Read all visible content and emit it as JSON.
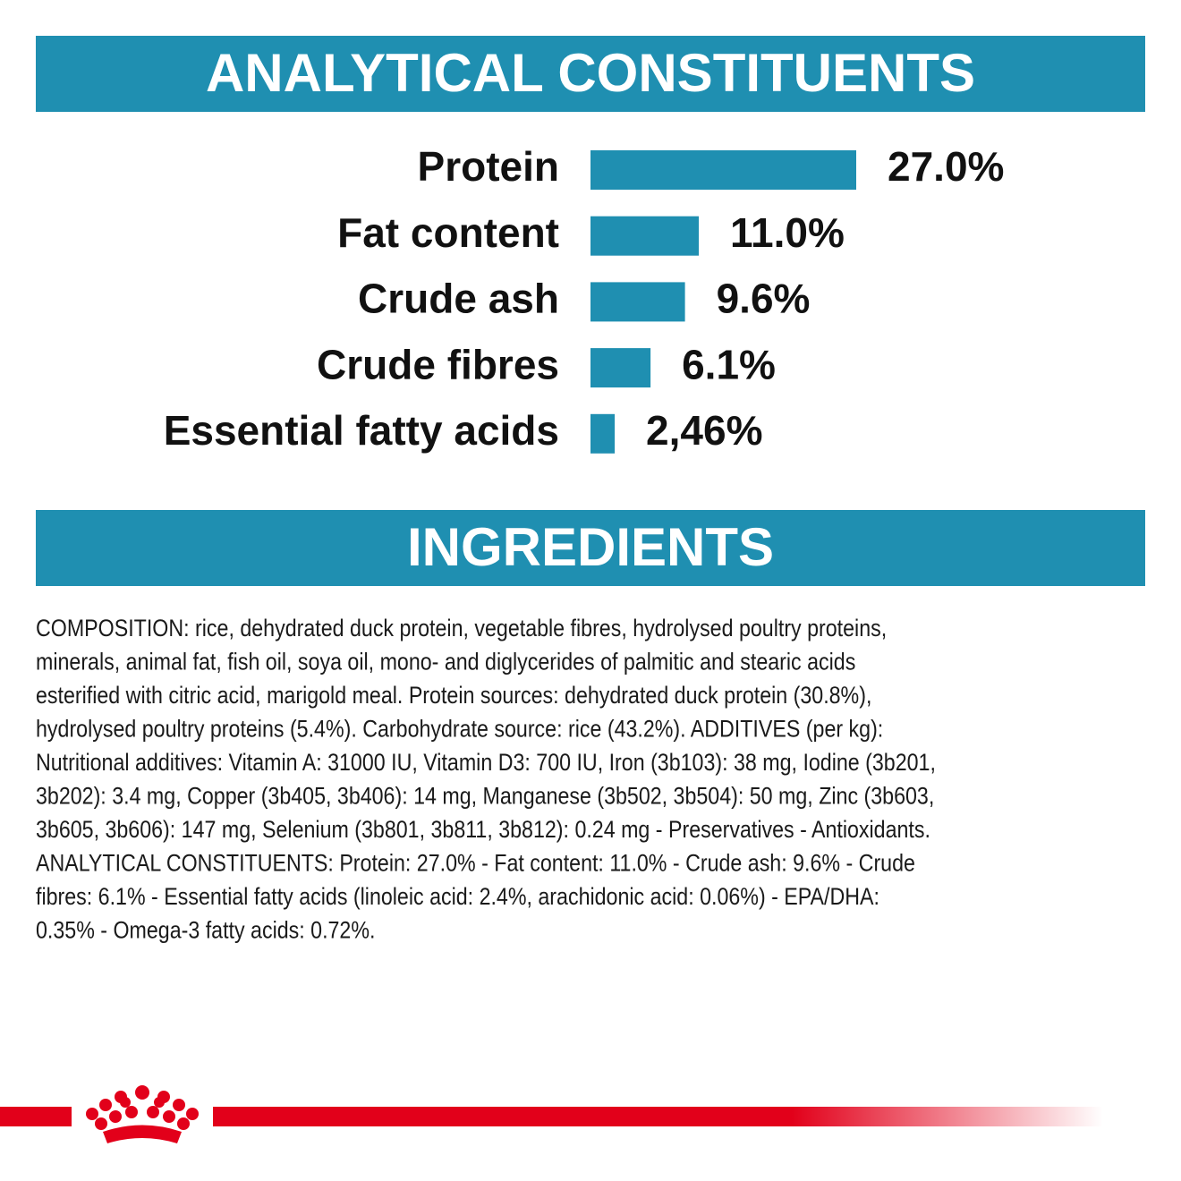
{
  "header": {
    "title": "ANALYTICAL CONSTITUENTS"
  },
  "chart_data": {
    "type": "bar",
    "orientation": "horizontal",
    "color": "#1f8fb1",
    "categories": [
      "Protein",
      "Fat content",
      "Crude ash",
      "Crude fibres",
      "Essential fatty acids"
    ],
    "values": [
      27.0,
      11.0,
      9.6,
      6.1,
      2.46
    ],
    "value_labels": [
      "27.0%",
      "11.0%",
      "9.6%",
      "6.1%",
      "2,46%"
    ]
  },
  "ingredients": {
    "title": "INGREDIENTS",
    "lines": [
      "COMPOSITION: rice, dehydrated duck protein, vegetable fibres, hydrolysed poultry proteins,",
      "minerals, animal fat, fish oil, soya oil, mono- and diglycerides of palmitic and stearic acids",
      "esterified with citric acid, marigold meal. Protein sources: dehydrated duck protein (30.8%),",
      "hydrolysed poultry proteins (5.4%). Carbohydrate source: rice (43.2%). ADDITIVES (per kg):",
      "Nutritional additives: Vitamin A: 31000 IU, Vitamin D3: 700 IU, Iron (3b103): 38 mg, Iodine (3b201,",
      "3b202): 3.4 mg, Copper (3b405, 3b406): 14 mg, Manganese (3b502, 3b504): 50 mg, Zinc (3b603,",
      "3b605, 3b606): 147 mg, Selenium (3b801, 3b811, 3b812): 0.24 mg - Preservatives - Antioxidants.",
      "ANALYTICAL CONSTITUENTS: Protein: 27.0% - Fat content: 11.0% - Crude ash: 9.6% - Crude",
      "fibres: 6.1% - Essential fatty acids (linoleic acid: 2.4%, arachidonic acid: 0.06%) - EPA/DHA:",
      "0.35% - Omega-3 fatty acids: 0.72%."
    ]
  }
}
